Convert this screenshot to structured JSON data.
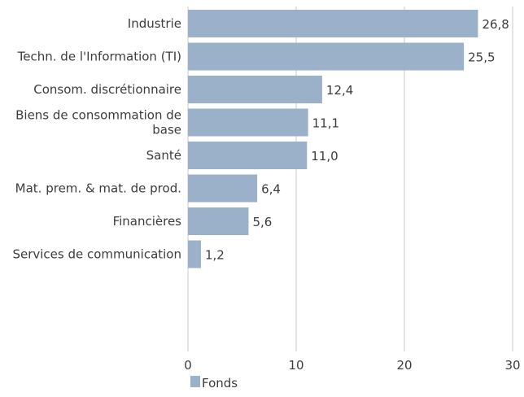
{
  "chart_data": {
    "type": "bar",
    "orientation": "horizontal",
    "categories": [
      [
        "Industrie"
      ],
      [
        "Techn. de l'Information (TI)"
      ],
      [
        "Consom. discrétionnaire"
      ],
      [
        "Biens de consommation de",
        "base"
      ],
      [
        "Santé"
      ],
      [
        "Mat. prem. & mat. de prod."
      ],
      [
        "Financières"
      ],
      [
        "Services de communication"
      ]
    ],
    "series": [
      {
        "name": "Fonds",
        "values": [
          26.8,
          25.5,
          12.4,
          11.1,
          11.0,
          6.4,
          5.6,
          1.2
        ],
        "value_labels": [
          "26,8",
          "25,5",
          "12,4",
          "11,1",
          "11,0",
          "6,4",
          "5,6",
          "1,2"
        ],
        "color": "#9bb1c9"
      }
    ],
    "xlim": [
      0,
      30
    ],
    "xticks": [
      0,
      10,
      20,
      30
    ],
    "xtick_labels": [
      "0",
      "10",
      "20",
      "30"
    ],
    "grid": "vertical",
    "grid_color": "#c8c8c8",
    "legend_position": "bottom-left",
    "title": "",
    "xlabel": "",
    "ylabel": ""
  }
}
